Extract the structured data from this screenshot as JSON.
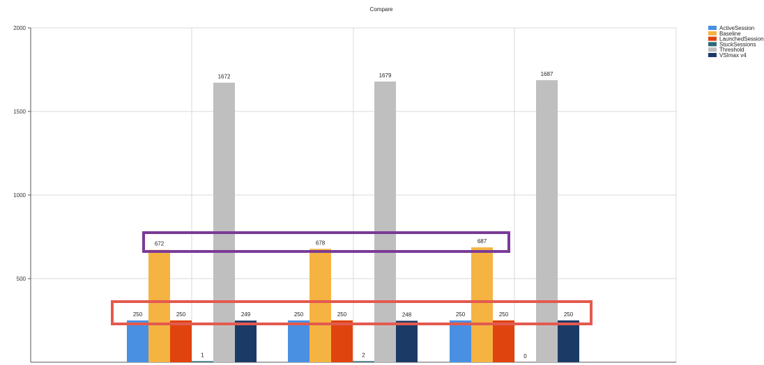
{
  "chart_data": {
    "type": "bar",
    "title": "Compare",
    "xlabel": "",
    "ylabel": "",
    "ylim": [
      0,
      2000
    ],
    "yticks": [
      500,
      1000,
      1500,
      2000
    ],
    "grid": true,
    "legend_position": "top-right",
    "categories": [
      "",
      "",
      ""
    ],
    "series": [
      {
        "name": "ActiveSession",
        "color": "#4a90e2",
        "values": [
          250,
          250,
          250
        ]
      },
      {
        "name": "Baseline",
        "color": "#f5b342",
        "values": [
          672,
          678,
          687
        ]
      },
      {
        "name": "LaunchedSessions",
        "color": "#e0440e",
        "values": [
          250,
          250,
          250
        ]
      },
      {
        "name": "StuckSessions",
        "color": "#2a6a7a",
        "values": [
          1,
          2,
          0
        ]
      },
      {
        "name": "Threshold",
        "color": "#bfbfbf",
        "values": [
          1672,
          1679,
          1687
        ]
      },
      {
        "name": "VSImax v4",
        "color": "#1c3a66",
        "values": [
          249,
          248,
          250
        ]
      }
    ],
    "annotations": [
      {
        "type": "highlight-box",
        "color": "#7b3b96",
        "around": "Baseline data labels"
      },
      {
        "type": "highlight-box",
        "color": "#e35a4f",
        "around": "ActiveSession, LaunchedSessions and VSImax v4 data labels"
      }
    ]
  }
}
